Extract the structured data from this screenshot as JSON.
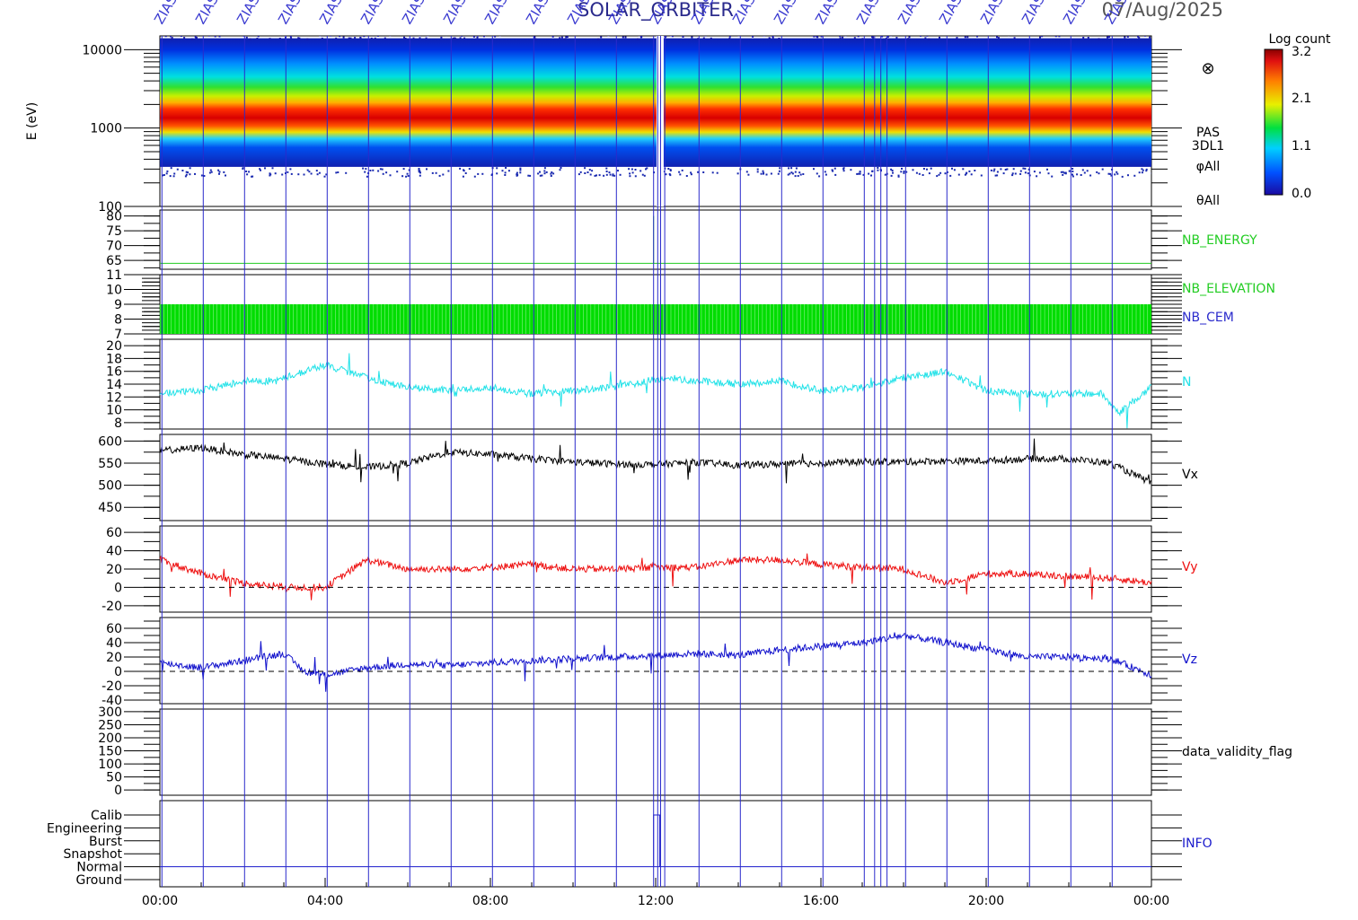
{
  "header": {
    "title": "SOLAR_ORBITER",
    "date": "07/Aug/2025",
    "marker_label": "ZIAS"
  },
  "time_axis": {
    "tick_labels": [
      "00:00",
      "04:00",
      "08:00",
      "12:00",
      "16:00",
      "20:00",
      "00:00"
    ]
  },
  "spectrogram": {
    "ylabel": "E (eV)",
    "y_ticks": [
      "10000",
      "1000",
      "100"
    ],
    "side_labels": [
      "PAS",
      "3DL1",
      "φAll",
      "θAll"
    ],
    "colorbar_title": "Log count",
    "colorbar_ticks": [
      "3.2",
      "2.1",
      "1.1",
      "0.0"
    ],
    "symbol": "⊗"
  },
  "chart_data": [
    {
      "type": "heatmap",
      "name": "PAS 3DL1 energy spectrogram",
      "ylabel": "E (eV)",
      "y_scale": "log",
      "ylim": [
        100,
        15000
      ],
      "xlim": [
        "00:00",
        "24:00"
      ],
      "peak_energy_ev": 1600,
      "colorbar_label": "Log count",
      "colorbar_range": [
        0.0,
        3.2
      ]
    },
    {
      "type": "line",
      "label": "NB_ENERGY",
      "color": "#22cc22",
      "y_ticks": [
        65,
        70,
        75,
        80
      ],
      "ylim": [
        62,
        82
      ],
      "value": 64
    },
    {
      "type": "area",
      "labels": [
        "NB_ELEVATION",
        "NB_CEM"
      ],
      "label_colors": [
        "#22cc22",
        "#2a2acc"
      ],
      "color": "#00dd00",
      "y_ticks": [
        7,
        8,
        9,
        10,
        11
      ],
      "ylim": [
        7,
        11
      ],
      "min_value": 7,
      "max_value": 9
    },
    {
      "type": "line",
      "label": "N",
      "color": "#22e2e8",
      "y_ticks": [
        8,
        10,
        12,
        14,
        16,
        18,
        20
      ],
      "ylim": [
        7,
        21
      ],
      "x": [
        0,
        1,
        2,
        2.8,
        3.5,
        4,
        4.5,
        5,
        6,
        7,
        8,
        9,
        10,
        11,
        11.8,
        12.3,
        13,
        14,
        15,
        16,
        17,
        18,
        19,
        20,
        21,
        22,
        22.8,
        23.2,
        24
      ],
      "values": [
        12.5,
        13,
        14.5,
        14.5,
        16,
        17,
        16,
        15,
        13.5,
        13,
        13.5,
        12.5,
        13,
        13.5,
        14.5,
        15,
        14.5,
        14,
        14.5,
        13,
        13.5,
        15,
        16,
        13,
        12.5,
        12.5,
        12.5,
        9.5,
        13.5
      ]
    },
    {
      "type": "line",
      "label": "Vx",
      "color": "#000000",
      "y_ticks": [
        450,
        500,
        550,
        600
      ],
      "ylim": [
        420,
        615
      ],
      "x": [
        0,
        1,
        2,
        3,
        4,
        5,
        6,
        7,
        8,
        9,
        10,
        11,
        12,
        13,
        14,
        15,
        16,
        17,
        18,
        19,
        20,
        21,
        22,
        23,
        24
      ],
      "values": [
        578,
        585,
        570,
        560,
        548,
        540,
        550,
        575,
        570,
        560,
        553,
        548,
        547,
        552,
        545,
        548,
        550,
        553,
        553,
        555,
        555,
        560,
        560,
        550,
        505
      ]
    },
    {
      "type": "line",
      "label": "Vy",
      "color": "#ee1111",
      "y_ticks": [
        -20,
        0,
        20,
        40,
        60
      ],
      "ylim": [
        -27,
        67
      ],
      "x": [
        0,
        1,
        2,
        3,
        4,
        5,
        6,
        7,
        8,
        9,
        10,
        11,
        12,
        13,
        14,
        15,
        16,
        17,
        18,
        19,
        20,
        21,
        22,
        23,
        24
      ],
      "values": [
        30,
        15,
        5,
        0,
        0,
        30,
        20,
        20,
        22,
        25,
        20,
        20,
        22,
        22,
        30,
        30,
        25,
        22,
        20,
        5,
        15,
        15,
        12,
        10,
        5
      ]
    },
    {
      "type": "line",
      "label": "Vz",
      "color": "#1111cc",
      "y_ticks": [
        -40,
        -20,
        0,
        20,
        40,
        60
      ],
      "ylim": [
        -45,
        75
      ],
      "x": [
        0,
        1,
        2,
        3,
        3.5,
        4,
        5,
        6,
        7,
        8,
        9,
        10,
        11,
        12,
        13,
        14,
        15,
        16,
        17,
        18,
        19,
        20,
        21,
        22,
        23,
        24
      ],
      "values": [
        12,
        5,
        15,
        25,
        0,
        -5,
        5,
        10,
        8,
        12,
        15,
        18,
        20,
        22,
        25,
        22,
        30,
        35,
        40,
        50,
        40,
        30,
        20,
        20,
        18,
        -5
      ]
    },
    {
      "type": "line",
      "label": "data_validity_flag",
      "color": "#000000",
      "y_ticks": [
        0,
        50,
        100,
        150,
        200,
        250,
        300
      ],
      "ylim": [
        -20,
        310
      ]
    },
    {
      "type": "line",
      "label": "INFO",
      "color": "#1a1acc",
      "categories": [
        "Calib",
        "Engineering",
        "Burst",
        "Snapshot",
        "Normal",
        "Ground"
      ],
      "value": "Normal"
    }
  ]
}
